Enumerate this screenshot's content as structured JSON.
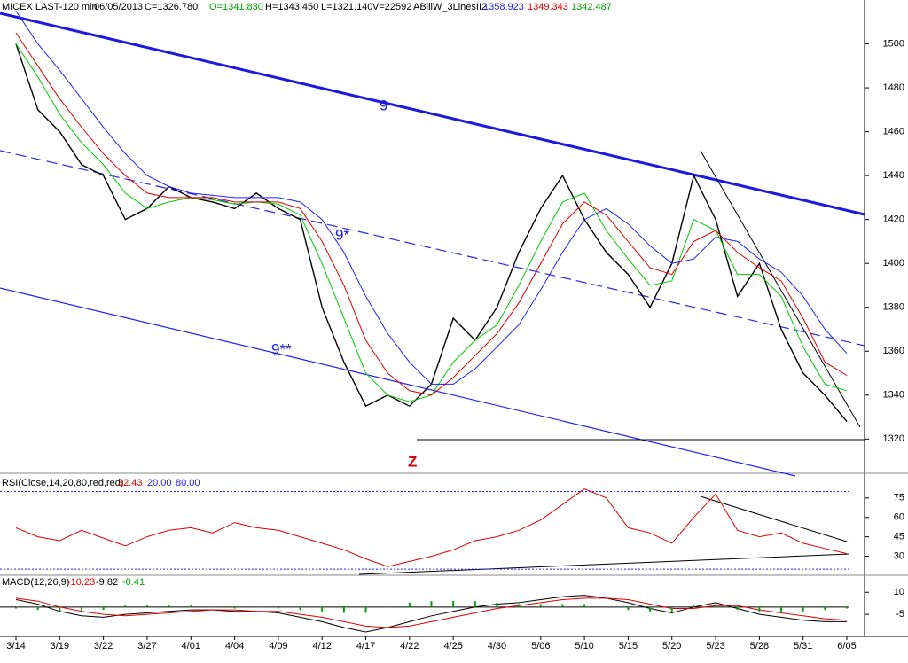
{
  "chart_data": [
    {
      "type": "line",
      "title": "MICEX LAST-120 min",
      "date": "06/05/2013",
      "quote": [
        "C=1326.780",
        "O=1341.830",
        "H=1343.450",
        "L=1321.140",
        "V=22592"
      ],
      "indicator": "ABillW_3LinesII2",
      "indicator_values": [
        "1358.923",
        "1349.343",
        "1342.487"
      ],
      "annotations": [
        "9",
        "9*",
        "9**",
        "Z"
      ],
      "categories": [
        "3/14",
        null,
        "3/19",
        null,
        "3/22",
        null,
        "3/27",
        null,
        "4/01",
        null,
        "4/04",
        null,
        "4/09",
        null,
        "4/12",
        null,
        "4/17",
        null,
        "4/22",
        null,
        "4/25",
        null,
        "4/30",
        null,
        "5/06",
        null,
        "5/10",
        null,
        "5/15",
        null,
        "5/20",
        null,
        "5/23",
        null,
        "5/28",
        null,
        "5/31",
        null,
        "6/05"
      ],
      "series": [
        {
          "name": "Close",
          "color": "#000000",
          "values": [
            1500,
            1470,
            1460,
            1445,
            1440,
            1420,
            1425,
            1435,
            1430,
            1428,
            1425,
            1432,
            1425,
            1420,
            1380,
            1355,
            1335,
            1340,
            1335,
            1345,
            1375,
            1365,
            1380,
            1405,
            1425,
            1440,
            1420,
            1405,
            1395,
            1380,
            1400,
            1440,
            1420,
            1385,
            1400,
            1370,
            1350,
            1340,
            1328
          ]
        },
        {
          "name": "Fast",
          "color": "#00cc00",
          "values": [
            1500,
            1485,
            1468,
            1455,
            1445,
            1432,
            1425,
            1428,
            1430,
            1429,
            1427,
            1428,
            1427,
            1422,
            1400,
            1375,
            1350,
            1340,
            1337,
            1340,
            1355,
            1365,
            1372,
            1390,
            1410,
            1428,
            1432,
            1415,
            1402,
            1390,
            1392,
            1420,
            1415,
            1395,
            1395,
            1385,
            1362,
            1345,
            1342
          ]
        },
        {
          "name": "Medium",
          "color": "#e00000",
          "values": [
            1505,
            1490,
            1475,
            1462,
            1450,
            1440,
            1432,
            1430,
            1430,
            1430,
            1428,
            1428,
            1428,
            1425,
            1410,
            1390,
            1365,
            1350,
            1342,
            1340,
            1348,
            1358,
            1368,
            1382,
            1400,
            1418,
            1428,
            1422,
            1410,
            1398,
            1395,
            1410,
            1415,
            1405,
            1398,
            1392,
            1375,
            1355,
            1349
          ]
        },
        {
          "name": "Slow",
          "color": "#2020ff",
          "values": [
            1515,
            1500,
            1488,
            1475,
            1462,
            1450,
            1440,
            1435,
            1432,
            1431,
            1430,
            1430,
            1430,
            1428,
            1420,
            1405,
            1385,
            1368,
            1355,
            1345,
            1345,
            1352,
            1362,
            1372,
            1388,
            1405,
            1420,
            1425,
            1418,
            1408,
            1400,
            1402,
            1412,
            1410,
            1402,
            1396,
            1385,
            1370,
            1359
          ]
        }
      ],
      "ylim": [
        1306,
        1520
      ],
      "yticks": [
        1320,
        1340,
        1360,
        1380,
        1400,
        1420,
        1440,
        1460,
        1480,
        1500
      ]
    },
    {
      "type": "line",
      "title": "RSI(Close,14,20,80,red,red)",
      "header_values": [
        "32.43",
        "20.00",
        "80.00"
      ],
      "series": [
        {
          "name": "RSI",
          "color": "#e00000",
          "values": [
            52,
            45,
            42,
            50,
            44,
            38,
            45,
            50,
            52,
            48,
            56,
            52,
            50,
            45,
            40,
            35,
            28,
            22,
            26,
            30,
            35,
            42,
            45,
            50,
            58,
            70,
            82,
            75,
            52,
            48,
            40,
            60,
            78,
            50,
            45,
            48,
            40,
            36,
            32
          ]
        }
      ],
      "levels": [
        20,
        80
      ],
      "level_color": "#2020ff",
      "ylim": [
        16,
        92
      ],
      "yticks": [
        30,
        45,
        60,
        75
      ]
    },
    {
      "type": "line",
      "title": "MACD(12,26,9)",
      "header_values": [
        "-10.23",
        "-9.82",
        "-0.41"
      ],
      "series": [
        {
          "name": "MACD",
          "color": "#000000",
          "values": [
            5,
            2,
            -3,
            -6,
            -7,
            -5,
            -4,
            -3,
            -2,
            -2,
            -3,
            -3,
            -4,
            -7,
            -10,
            -14,
            -17,
            -14,
            -10,
            -6,
            -3,
            0,
            2,
            3,
            5,
            7,
            8,
            6,
            3,
            -1,
            -4,
            0,
            3,
            -1,
            -5,
            -7,
            -9,
            -10,
            -10
          ]
        },
        {
          "name": "Signal",
          "color": "#e00000",
          "values": [
            6,
            4,
            0,
            -3,
            -5,
            -6,
            -5,
            -4,
            -3,
            -2,
            -2,
            -3,
            -3,
            -5,
            -7,
            -10,
            -13,
            -14,
            -13,
            -10,
            -7,
            -4,
            -1,
            1,
            3,
            5,
            6,
            6,
            5,
            2,
            -1,
            -1,
            1,
            1,
            -2,
            -4,
            -6,
            -8,
            -9
          ]
        },
        {
          "name": "Histogram",
          "color": "#00a000",
          "bars": true,
          "values": [
            -1,
            -2,
            -3,
            -3,
            -2,
            1,
            1,
            1,
            1,
            0,
            -1,
            0,
            -1,
            -2,
            -3,
            -4,
            -4,
            0,
            3,
            4,
            4,
            4,
            3,
            2,
            2,
            2,
            2,
            0,
            -2,
            -3,
            -3,
            1,
            2,
            -2,
            -3,
            -3,
            -3,
            -2,
            -1
          ]
        }
      ],
      "levels": [
        0
      ],
      "level_color": "#000000",
      "ylim": [
        -20,
        21
      ],
      "yticks": [
        -5,
        10
      ]
    }
  ]
}
